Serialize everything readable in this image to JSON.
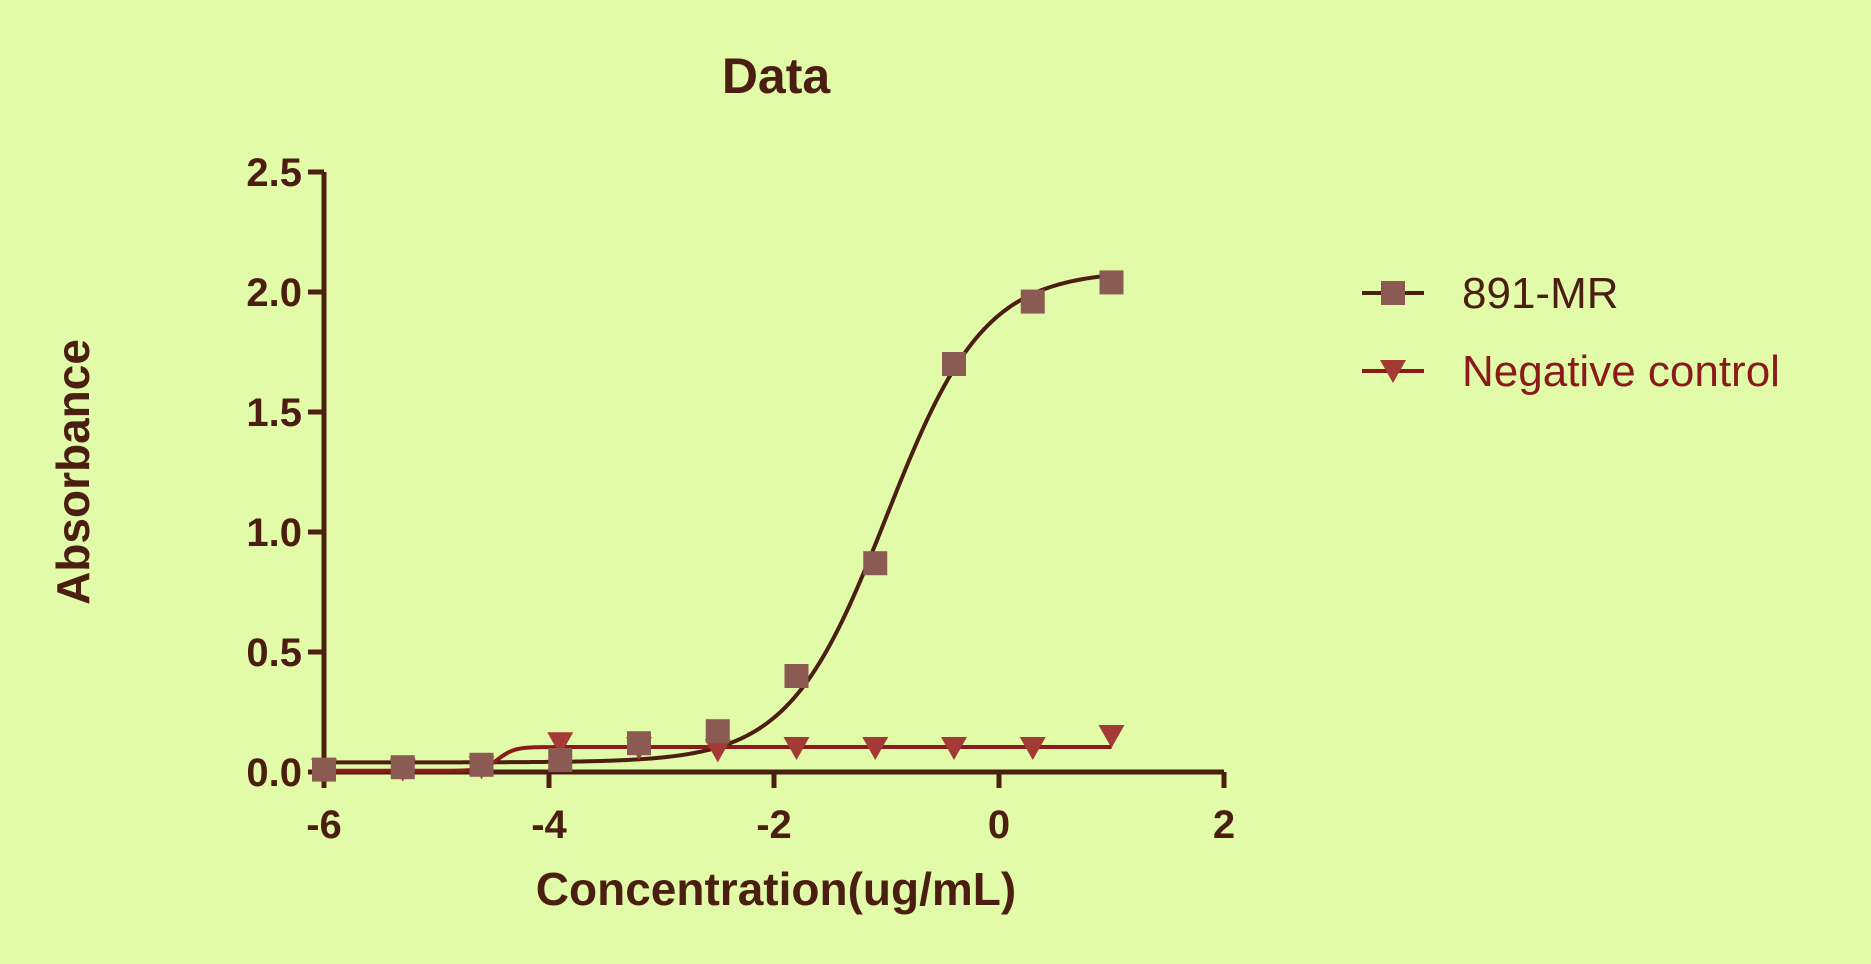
{
  "chart_data": {
    "type": "scatter",
    "title": "Data",
    "xlabel": "Concentration(ug/mL)",
    "ylabel": "Absorbance",
    "xlim": [
      -6,
      2
    ],
    "ylim": [
      0,
      2.5
    ],
    "x_ticks": [
      "-6",
      "-4",
      "-2",
      "0",
      "2"
    ],
    "y_ticks": [
      "0.0",
      "0.5",
      "1.0",
      "1.5",
      "2.0",
      "2.5"
    ],
    "grid": false,
    "legend_position": "right",
    "x": [
      -6.0,
      -5.3,
      -4.6,
      -3.9,
      -3.2,
      -2.5,
      -1.8,
      -1.1,
      -0.4,
      0.3,
      1.0
    ],
    "series": [
      {
        "name": "891-MR",
        "marker": "square",
        "color": "#8b5a52",
        "line_color": "#4a1e10",
        "values": [
          0.01,
          0.02,
          0.03,
          0.05,
          0.12,
          0.17,
          0.4,
          0.87,
          1.7,
          1.96,
          2.04
        ],
        "fit": {
          "model": "sigmoidal",
          "bottom": 0.04,
          "top": 2.09,
          "logEC50": -1.0,
          "hill": 1.0
        }
      },
      {
        "name": "Negative control",
        "marker": "triangle-down",
        "color": "#a33a36",
        "line_color": "#8b1a1a",
        "values": [
          0.01,
          0.01,
          0.02,
          0.12,
          0.1,
          0.09,
          0.1,
          0.1,
          0.1,
          0.1,
          0.15
        ],
        "fit": {
          "model": "sigmoidal",
          "bottom": 0.005,
          "top": 0.104,
          "logEC50": -4.45,
          "hill": 6.0
        }
      }
    ]
  }
}
